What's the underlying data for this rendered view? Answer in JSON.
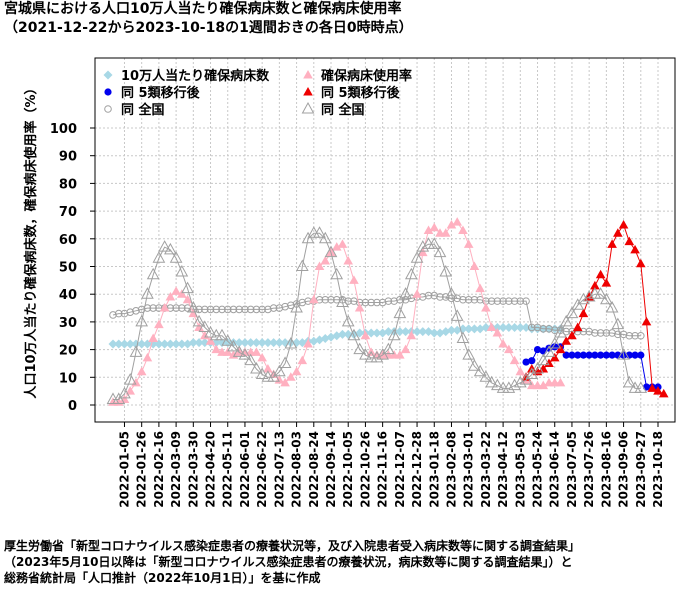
{
  "title": "宮城県における人口10万人当たり確保病床数と確保病床使用率",
  "subtitle": "（2021-12-22から2023-10-18の1週間おきの各日0時時点）",
  "footer": [
    "厚生労働省「新型コロナウイルス感染症患者の療養状況等，及び入院患者受入病床数等に関する調査結果」",
    "（2023年5月10日以降は「新型コロナウイルス感染症患者の療養状況，病床数等に関する調査結果」）と",
    "総務省統計局「人口推計（2022年10月1日）」を基に作成"
  ],
  "colors": {
    "beds": "#a8d8e6",
    "beds_post": "#0000ee",
    "beds_national": "#a0a0a0",
    "rate": "#ffb0c0",
    "rate_post": "#ee0000",
    "rate_national": "#a0a0a0",
    "grid": "#c8c8c8"
  },
  "chart_data": {
    "type": "line",
    "ylabel": "人口10万人当たり確保病床数，確保病床使用率（%）",
    "ylim": [
      0,
      100
    ],
    "yticks": [
      0,
      10,
      20,
      30,
      40,
      50,
      60,
      70,
      80,
      90,
      100
    ],
    "x_start": "2021-12-22",
    "x_end": "2023-10-18",
    "x_step_days": 7,
    "x_ticks": [
      "2022-01-05",
      "2022-01-26",
      "2022-02-16",
      "2022-03-09",
      "2022-03-30",
      "2022-04-20",
      "2022-05-11",
      "2022-06-01",
      "2022-06-22",
      "2022-07-13",
      "2022-08-03",
      "2022-08-24",
      "2022-09-14",
      "2022-10-05",
      "2022-10-26",
      "2022-11-16",
      "2022-12-07",
      "2022-12-28",
      "2023-01-18",
      "2023-02-08",
      "2023-03-01",
      "2023-03-22",
      "2023-04-12",
      "2023-05-03",
      "2023-05-24",
      "2023-06-14",
      "2023-07-05",
      "2023-07-26",
      "2023-08-16",
      "2023-09-06",
      "2023-09-27",
      "2023-10-18"
    ],
    "legend": [
      {
        "label": "10万人当たり確保病床数",
        "marker": "diamond",
        "color": "beds"
      },
      {
        "label": "同 5類移行後",
        "marker": "circle",
        "color": "beds_post"
      },
      {
        "label": "同 全国",
        "marker": "circle-open",
        "color": "beds_national"
      },
      {
        "label": "確保病床使用率",
        "marker": "triangle",
        "color": "rate"
      },
      {
        "label": "同 5類移行後",
        "marker": "triangle",
        "color": "rate_post"
      },
      {
        "label": "同 全国",
        "marker": "triangle-open",
        "color": "rate_national"
      }
    ],
    "series": [
      {
        "name": "10万人当たり確保病床数",
        "key": "beds",
        "marker": "diamond",
        "start_index": 0,
        "values": [
          22,
          22,
          22,
          22,
          22,
          22,
          22,
          22,
          22,
          22,
          22,
          22,
          22,
          22,
          22.5,
          22.5,
          22.5,
          22.5,
          22.5,
          22.5,
          22.5,
          22.5,
          22.5,
          22.5,
          22.5,
          22.5,
          22.5,
          22.5,
          22.5,
          22.5,
          22.5,
          22.5,
          22.5,
          22.5,
          23,
          23,
          23.5,
          24,
          24.5,
          25,
          25.5,
          25.5,
          25.5,
          26,
          26,
          26,
          26,
          26,
          26.5,
          26.5,
          26.5,
          26.5,
          26.5,
          26.5,
          26.5,
          26.5,
          26,
          26,
          26.5,
          27,
          27,
          27.5,
          27.5,
          27.5,
          27.5,
          28,
          28,
          28,
          28,
          28,
          28,
          28,
          28,
          27.5,
          27.5,
          27.5,
          27.5,
          27.5,
          27.5
        ]
      },
      {
        "name": "同 5類移行後",
        "key": "beds_post",
        "marker": "circle",
        "start_index": 72,
        "values": [
          15.5,
          16,
          20,
          19.5,
          20.5,
          21,
          21,
          18,
          18,
          18,
          18,
          18,
          18,
          18,
          18,
          18,
          18,
          18,
          18,
          18,
          18,
          6.5,
          6.5,
          6.5
        ]
      },
      {
        "name": "同 全国",
        "key": "beds_national",
        "marker": "circle-open",
        "start_index": 0,
        "values": [
          32.5,
          33,
          33,
          33.5,
          34,
          34.5,
          35,
          35,
          35,
          35,
          35,
          35,
          35,
          35,
          34.5,
          34.5,
          34.5,
          34.5,
          34.5,
          34.5,
          34.5,
          34.5,
          34.5,
          34.5,
          34.5,
          34.5,
          34.5,
          34.5,
          35,
          35,
          35.5,
          36,
          36.5,
          37,
          37.5,
          37.5,
          38,
          38,
          38,
          38,
          38,
          37.5,
          37.5,
          37,
          37,
          37,
          37,
          37,
          37.5,
          37.5,
          38,
          38,
          38.5,
          39,
          39,
          39.5,
          39.5,
          39,
          39,
          38.5,
          38.5,
          38,
          38,
          38,
          38,
          37.5,
          37.5,
          37.5,
          37.5,
          37.5,
          37.5,
          37.5,
          37.5,
          28,
          28,
          27.5,
          27.5,
          27,
          27,
          26.5,
          26.5,
          26.5,
          26.5,
          26.5,
          26,
          26,
          26,
          26,
          25.5,
          25.5,
          25,
          25,
          25
        ]
      },
      {
        "name": "確保病床使用率",
        "key": "rate",
        "marker": "triangle",
        "start_index": 0,
        "values": [
          1,
          1,
          2,
          5,
          8,
          12,
          17,
          24,
          29,
          35,
          39,
          41,
          40,
          38,
          33,
          28,
          25,
          23,
          20,
          19,
          19,
          18,
          19,
          19,
          19,
          19,
          17,
          13,
          11,
          9,
          8,
          10,
          12,
          16,
          22,
          38,
          50,
          52,
          55,
          57,
          58,
          52,
          45,
          35,
          25,
          19,
          18,
          18,
          18,
          18,
          18,
          20,
          25,
          40,
          55,
          63,
          64,
          62,
          62,
          65,
          66,
          63,
          58,
          50,
          42,
          35,
          28,
          26,
          22,
          20,
          16,
          12,
          9,
          7,
          7,
          7,
          8,
          8,
          8
        ]
      },
      {
        "name": "同 5類移行後",
        "key": "rate_post",
        "marker": "triangle",
        "start_index": 72,
        "values": [
          10,
          13,
          12,
          13,
          15,
          17,
          20,
          23,
          25,
          28,
          33,
          39,
          43,
          47,
          44,
          58,
          62,
          65,
          59,
          56,
          51,
          30,
          6,
          5,
          4
        ]
      },
      {
        "name": "同 全国",
        "key": "rate_national",
        "marker": "triangle-open",
        "start_index": 0,
        "values": [
          2,
          2,
          4,
          9,
          19,
          30,
          40,
          47,
          53,
          57,
          56,
          53,
          48,
          42,
          35,
          30,
          28,
          26,
          25,
          25,
          23,
          21,
          19,
          18,
          16,
          13,
          11,
          10,
          10,
          12,
          15,
          22,
          35,
          50,
          60,
          62,
          62,
          60,
          55,
          47,
          37,
          30,
          25,
          20,
          18,
          17,
          17,
          18,
          20,
          25,
          33,
          40,
          47,
          53,
          57,
          58,
          58,
          55,
          48,
          40,
          32,
          24,
          18,
          14,
          12,
          10,
          8,
          7,
          6,
          6,
          7,
          8,
          9,
          11,
          13,
          16,
          19,
          22,
          26,
          30,
          33,
          36,
          38,
          39,
          40,
          40,
          38,
          35,
          29,
          18,
          8,
          6,
          6
        ]
      }
    ]
  }
}
